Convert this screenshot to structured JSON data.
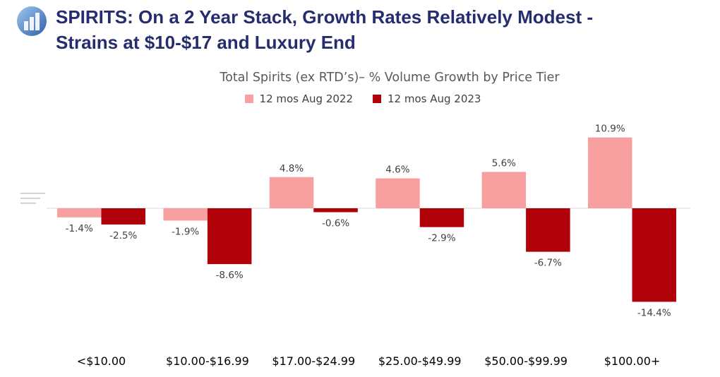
{
  "headline": {
    "line1": "SPIRITS: On a 2 Year Stack, Growth Rates Relatively Modest -",
    "line2": "Strains at $10-$17 and Luxury End"
  },
  "icons": {
    "logo": "bar-chart-circle-logo",
    "menu": "hamburger-menu-icon"
  },
  "colors": {
    "series_2022": "#f8a0a0",
    "series_2023": "#b00008",
    "headline": "#262d6e"
  },
  "chart_data": {
    "type": "bar",
    "title": "Total Spirits (ex RTD’s)– % Volume Growth by Price Tier",
    "categories": [
      "<$10.00",
      "$10.00-$16.99",
      "$17.00-$24.99",
      "$25.00-$49.99",
      "$50.00-$99.99",
      "$100.00+"
    ],
    "series": [
      {
        "name": "12 mos Aug 2022",
        "values": [
          -1.4,
          -1.9,
          4.8,
          4.6,
          5.6,
          10.9
        ],
        "labels": [
          "-1.4%",
          "-1.9%",
          "4.8%",
          "4.6%",
          "5.6%",
          "10.9%"
        ]
      },
      {
        "name": "12 mos Aug 2023",
        "values": [
          -2.5,
          -8.6,
          -0.6,
          -2.9,
          -6.7,
          -14.4
        ],
        "labels": [
          "-2.5%",
          "-8.6%",
          "-0.6%",
          "-2.9%",
          "-6.7%",
          "-14.4%"
        ]
      }
    ],
    "legend_position": "top",
    "grid": false,
    "ylim": [
      -16,
      13
    ]
  }
}
